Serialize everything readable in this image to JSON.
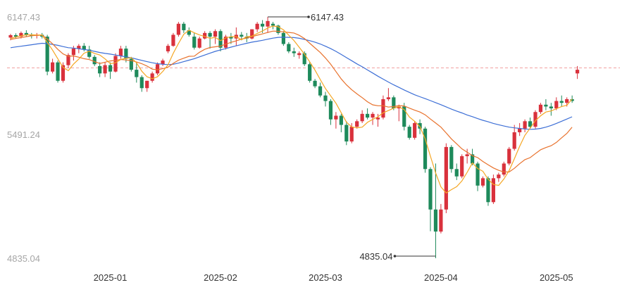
{
  "chart_data": {
    "type": "candlestick",
    "y_ticks": [
      "6147.43",
      "5491.24",
      "4835.04"
    ],
    "y_tick_values": [
      6147.43,
      5491.24,
      4835.04
    ],
    "ylim": [
      4835.04,
      6147.43
    ],
    "x_ticks": [
      "2025-01",
      "2025-02",
      "2025-03",
      "2025-04",
      "2025-05"
    ],
    "x_tick_index": [
      19,
      40,
      60,
      82,
      104
    ],
    "max_label": "6147.43",
    "min_label": "4835.04",
    "max_index": 49,
    "min_index": 81,
    "reference_value": 5870,
    "colors": {
      "up": "#d9313c",
      "down": "#1e8a5b",
      "ma5": "#f5a623",
      "ma10": "#e8722d",
      "ma20": "#3d6fd6",
      "ref": "#f0a0a0"
    },
    "ohlc": [
      [
        6035,
        6055,
        6020,
        6048
      ],
      [
        6048,
        6058,
        6030,
        6040
      ],
      [
        6040,
        6068,
        6030,
        6060
      ],
      [
        6060,
        6075,
        6040,
        6050
      ],
      [
        6050,
        6060,
        6030,
        6045
      ],
      [
        6045,
        6060,
        6030,
        6050
      ],
      [
        6050,
        6060,
        6030,
        6040
      ],
      [
        6040,
        6050,
        5830,
        5850
      ],
      [
        5850,
        5920,
        5840,
        5900
      ],
      [
        5900,
        5910,
        5790,
        5800
      ],
      [
        5800,
        5900,
        5790,
        5885
      ],
      [
        5885,
        5950,
        5870,
        5940
      ],
      [
        5940,
        5990,
        5910,
        5975
      ],
      [
        5975,
        6000,
        5950,
        5990
      ],
      [
        5990,
        6005,
        5960,
        5970
      ],
      [
        5970,
        5990,
        5920,
        5930
      ],
      [
        5930,
        5940,
        5880,
        5890
      ],
      [
        5880,
        5900,
        5820,
        5840
      ],
      [
        5840,
        5900,
        5820,
        5885
      ],
      [
        5885,
        5900,
        5810,
        5850
      ],
      [
        5850,
        5950,
        5845,
        5935
      ],
      [
        5935,
        5990,
        5920,
        5975
      ],
      [
        5975,
        5990,
        5900,
        5920
      ],
      [
        5920,
        5930,
        5850,
        5860
      ],
      [
        5860,
        5900,
        5790,
        5820
      ],
      [
        5820,
        5830,
        5740,
        5760
      ],
      [
        5760,
        5800,
        5740,
        5800
      ],
      [
        5800,
        5850,
        5790,
        5840
      ],
      [
        5840,
        5900,
        5830,
        5890
      ],
      [
        5890,
        5920,
        5880,
        5910
      ],
      [
        5960,
        6000,
        5950,
        5990
      ],
      [
        5990,
        6060,
        5985,
        6050
      ],
      [
        6050,
        6120,
        6040,
        6110
      ],
      [
        6110,
        6120,
        6060,
        6075
      ],
      [
        6075,
        6090,
        6040,
        6050
      ],
      [
        6040,
        6060,
        5970,
        5980
      ],
      [
        5980,
        6040,
        5975,
        6030
      ],
      [
        6030,
        6070,
        6025,
        6060
      ],
      [
        6060,
        6070,
        5975,
        6040
      ],
      [
        6040,
        6080,
        6000,
        6070
      ],
      [
        6070,
        6080,
        5960,
        5980
      ],
      [
        5980,
        6050,
        5970,
        6040
      ],
      [
        6040,
        6060,
        6000,
        6030
      ],
      [
        6030,
        6090,
        5990,
        6050
      ],
      [
        6050,
        6065,
        6020,
        6040
      ],
      [
        6040,
        6060,
        6010,
        6030
      ],
      [
        6030,
        6080,
        6025,
        6080
      ],
      [
        6080,
        6120,
        6065,
        6110
      ],
      [
        6110,
        6130,
        6060,
        6095
      ],
      [
        6095,
        6147,
        6060,
        6125
      ],
      [
        6110,
        6120,
        6080,
        6100
      ],
      [
        6100,
        6105,
        6050,
        6060
      ],
      [
        6060,
        6070,
        5990,
        6000
      ],
      [
        6000,
        6010,
        5950,
        5960
      ],
      [
        5960,
        5980,
        5930,
        5950
      ],
      [
        5940,
        5960,
        5920,
        5950
      ],
      [
        5950,
        5960,
        5880,
        5890
      ],
      [
        5890,
        5900,
        5790,
        5800
      ],
      [
        5800,
        5810,
        5760,
        5770
      ],
      [
        5770,
        5790,
        5710,
        5720
      ],
      [
        5720,
        5740,
        5660,
        5690
      ],
      [
        5690,
        5700,
        5560,
        5590
      ],
      [
        5590,
        5630,
        5540,
        5610
      ],
      [
        5610,
        5620,
        5520,
        5560
      ],
      [
        5560,
        5580,
        5450,
        5470
      ],
      [
        5470,
        5570,
        5460,
        5550
      ],
      [
        5550,
        5590,
        5540,
        5580
      ],
      [
        5580,
        5640,
        5570,
        5620
      ],
      [
        5620,
        5650,
        5590,
        5600
      ],
      [
        5600,
        5630,
        5560,
        5620
      ],
      [
        5590,
        5620,
        5550,
        5600
      ],
      [
        5600,
        5720,
        5590,
        5700
      ],
      [
        5700,
        5760,
        5690,
        5710
      ],
      [
        5710,
        5720,
        5640,
        5650
      ],
      [
        5650,
        5670,
        5580,
        5660
      ],
      [
        5660,
        5680,
        5530,
        5550
      ],
      [
        5550,
        5560,
        5480,
        5490
      ],
      [
        5490,
        5580,
        5480,
        5570
      ],
      [
        5570,
        5590,
        5510,
        5540
      ],
      [
        5540,
        5550,
        5300,
        5320
      ],
      [
        5320,
        5330,
        4982,
        5100
      ],
      [
        5100,
        5350,
        4835,
        4980
      ],
      [
        4980,
        5130,
        4970,
        5100
      ],
      [
        5100,
        5460,
        5080,
        5440
      ],
      [
        5440,
        5450,
        5300,
        5320
      ],
      [
        5320,
        5350,
        5260,
        5280
      ],
      [
        5280,
        5400,
        5270,
        5390
      ],
      [
        5390,
        5430,
        5350,
        5400
      ],
      [
        5400,
        5430,
        5340,
        5350
      ],
      [
        5350,
        5360,
        5200,
        5230
      ],
      [
        5230,
        5280,
        5220,
        5270
      ],
      [
        5270,
        5280,
        5120,
        5140
      ],
      [
        5140,
        5290,
        5130,
        5270
      ],
      [
        5270,
        5300,
        5250,
        5290
      ],
      [
        5290,
        5360,
        5280,
        5350
      ],
      [
        5350,
        5440,
        5340,
        5430
      ],
      [
        5430,
        5560,
        5420,
        5520
      ],
      [
        5520,
        5570,
        5500,
        5540
      ],
      [
        5540,
        5590,
        5520,
        5580
      ],
      [
        5580,
        5600,
        5540,
        5550
      ],
      [
        5550,
        5640,
        5540,
        5630
      ],
      [
        5630,
        5680,
        5620,
        5670
      ],
      [
        5670,
        5700,
        5640,
        5660
      ],
      [
        5660,
        5680,
        5610,
        5650
      ],
      [
        5650,
        5710,
        5640,
        5690
      ],
      [
        5690,
        5720,
        5660,
        5680
      ],
      [
        5680,
        5710,
        5660,
        5700
      ],
      [
        5700,
        5720,
        5680,
        5690
      ],
      [
        5840,
        5880,
        5810,
        5860
      ]
    ],
    "ma5": [
      6030,
      6038,
      6044,
      6050,
      6050,
      6049,
      6049,
      6008,
      5967,
      5920,
      5873,
      5855,
      5891,
      5918,
      5950,
      5961,
      5949,
      5940,
      5919,
      5893,
      5898,
      5916,
      5922,
      5926,
      5898,
      5852,
      5822,
      5811,
      5822,
      5851,
      5887,
      5950,
      6003,
      6053,
      6075,
      6061,
      6049,
      6041,
      6031,
      6036,
      6018,
      6033,
      6040,
      6040,
      6023,
      6040,
      6043,
      6057,
      6071,
      6087,
      6098,
      6094,
      6077,
      6048,
      6019,
      5982,
      5945,
      5903,
      5858,
      5807,
      5758,
      5718,
      5678,
      5626,
      5575,
      5549,
      5544,
      5548,
      5574,
      5590,
      5604,
      5626,
      5638,
      5651,
      5659,
      5643,
      5603,
      5580,
      5551,
      5484,
      5390,
      5298,
      5223,
      5190,
      5208,
      5224,
      5255,
      5302,
      5353,
      5323,
      5308,
      5264,
      5236,
      5231,
      5266,
      5312,
      5376,
      5443,
      5503,
      5542,
      5583,
      5610,
      5630,
      5636,
      5648,
      5660,
      5667,
      5700
    ],
    "ma10": [
      6025,
      6030,
      6035,
      6040,
      6045,
      6047,
      6048,
      6027,
      6001,
      5971,
      5946,
      5933,
      5935,
      5928,
      5920,
      5915,
      5904,
      5894,
      5901,
      5908,
      5911,
      5916,
      5913,
      5910,
      5902,
      5893,
      5880,
      5863,
      5860,
      5866,
      5874,
      5895,
      5912,
      5923,
      5933,
      5934,
      5955,
      5971,
      5981,
      5985,
      5989,
      5999,
      6009,
      6017,
      6027,
      6032,
      6040,
      6048,
      6055,
      6063,
      6070,
      6069,
      6066,
      6063,
      6060,
      6047,
      6030,
      6004,
      5979,
      5954,
      5924,
      5890,
      5850,
      5810,
      5778,
      5751,
      5729,
      5708,
      5686,
      5669,
      5664,
      5664,
      5657,
      5660,
      5665,
      5663,
      5651,
      5640,
      5630,
      5615,
      5592,
      5570,
      5548,
      5516,
      5484,
      5457,
      5430,
      5412,
      5393,
      5382,
      5361,
      5343,
      5326,
      5313,
      5304,
      5304,
      5324,
      5349,
      5371,
      5382,
      5404,
      5425,
      5437,
      5447,
      5465,
      5490,
      5514,
      5548
    ],
    "ma20": [
      5980,
      5984,
      5988,
      5992,
      5996,
      6000,
      6004,
      6002,
      5998,
      5993,
      5986,
      5980,
      5978,
      5974,
      5970,
      5966,
      5960,
      5954,
      5949,
      5945,
      5940,
      5935,
      5930,
      5925,
      5918,
      5911,
      5904,
      5898,
      5893,
      5890,
      5888,
      5890,
      5896,
      5904,
      5912,
      5920,
      5930,
      5940,
      5950,
      5960,
      5968,
      5975,
      5983,
      5990,
      5997,
      6004,
      6010,
      6015,
      6020,
      6026,
      6032,
      6036,
      6037,
      6036,
      6035,
      6031,
      6025,
      6018,
      6010,
      6000,
      5988,
      5975,
      5960,
      5943,
      5926,
      5909,
      5892,
      5876,
      5859,
      5842,
      5825,
      5809,
      5793,
      5778,
      5764,
      5750,
      5737,
      5724,
      5713,
      5703,
      5692,
      5681,
      5670,
      5658,
      5646,
      5635,
      5625,
      5614,
      5605,
      5594,
      5585,
      5577,
      5568,
      5561,
      5554,
      5548,
      5544,
      5541,
      5538,
      5536,
      5537,
      5541,
      5548,
      5557,
      5568,
      5580,
      5592,
      5604
    ]
  }
}
